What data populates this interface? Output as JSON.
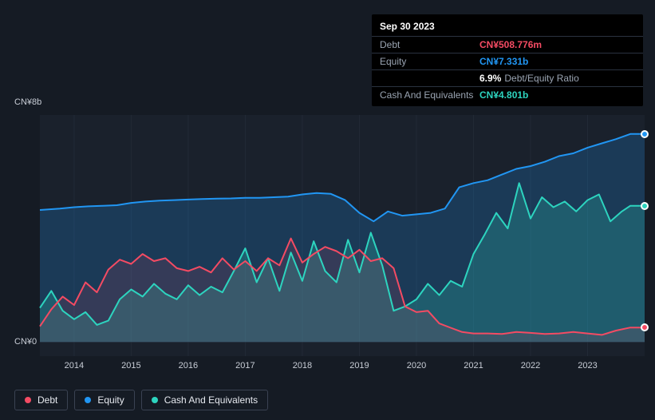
{
  "tooltip": {
    "date": "Sep 30 2023",
    "rows": [
      {
        "label": "Debt",
        "value": "CN¥508.776m",
        "color": "#f44b63"
      },
      {
        "label": "Equity",
        "value": "CN¥7.331b",
        "color": "#2196f3"
      },
      {
        "label": "",
        "value": "6.9%",
        "suffix": "Debt/Equity Ratio",
        "color": "#ffffff"
      },
      {
        "label": "Cash And Equivalents",
        "value": "CN¥4.801b",
        "color": "#2dd4bf"
      }
    ]
  },
  "chart": {
    "type": "area",
    "background": "#1a212c",
    "page_background": "#151b24",
    "grid_color": "#222a36",
    "y_axis": {
      "ticks": [
        {
          "value": 8,
          "label": "CN¥8b"
        },
        {
          "value": 0,
          "label": "CN¥0"
        }
      ],
      "min": -0.5,
      "max": 8,
      "label_color": "#c8cdd6",
      "fontsize": 11
    },
    "x_axis": {
      "labels": [
        "2014",
        "2015",
        "2016",
        "2017",
        "2018",
        "2019",
        "2020",
        "2021",
        "2022",
        "2023"
      ],
      "min": 2013.4,
      "max": 2024.0,
      "label_color": "#c8cdd6",
      "fontsize": 11
    },
    "series": [
      {
        "name": "Equity",
        "color": "#2196f3",
        "fill_opacity": 0.22,
        "line_width": 2,
        "data": [
          [
            2013.4,
            4.65
          ],
          [
            2013.75,
            4.7
          ],
          [
            2014.0,
            4.75
          ],
          [
            2014.25,
            4.78
          ],
          [
            2014.5,
            4.8
          ],
          [
            2014.75,
            4.82
          ],
          [
            2015.0,
            4.9
          ],
          [
            2015.25,
            4.95
          ],
          [
            2015.5,
            4.98
          ],
          [
            2015.75,
            5.0
          ],
          [
            2016.0,
            5.02
          ],
          [
            2016.25,
            5.04
          ],
          [
            2016.5,
            5.05
          ],
          [
            2016.75,
            5.06
          ],
          [
            2017.0,
            5.08
          ],
          [
            2017.25,
            5.08
          ],
          [
            2017.5,
            5.1
          ],
          [
            2017.75,
            5.12
          ],
          [
            2018.0,
            5.2
          ],
          [
            2018.25,
            5.25
          ],
          [
            2018.5,
            5.22
          ],
          [
            2018.75,
            5.0
          ],
          [
            2019.0,
            4.55
          ],
          [
            2019.25,
            4.25
          ],
          [
            2019.5,
            4.6
          ],
          [
            2019.75,
            4.45
          ],
          [
            2020.0,
            4.5
          ],
          [
            2020.25,
            4.55
          ],
          [
            2020.5,
            4.7
          ],
          [
            2020.75,
            5.45
          ],
          [
            2021.0,
            5.6
          ],
          [
            2021.25,
            5.7
          ],
          [
            2021.5,
            5.9
          ],
          [
            2021.75,
            6.1
          ],
          [
            2022.0,
            6.2
          ],
          [
            2022.25,
            6.35
          ],
          [
            2022.5,
            6.55
          ],
          [
            2022.75,
            6.65
          ],
          [
            2023.0,
            6.85
          ],
          [
            2023.25,
            7.0
          ],
          [
            2023.5,
            7.15
          ],
          [
            2023.75,
            7.33
          ],
          [
            2024.0,
            7.33
          ]
        ]
      },
      {
        "name": "Cash And Equivalents",
        "color": "#2dd4bf",
        "fill_opacity": 0.22,
        "line_width": 2,
        "data": [
          [
            2013.4,
            1.2
          ],
          [
            2013.6,
            1.8
          ],
          [
            2013.8,
            1.1
          ],
          [
            2014.0,
            0.8
          ],
          [
            2014.2,
            1.05
          ],
          [
            2014.4,
            0.6
          ],
          [
            2014.6,
            0.75
          ],
          [
            2014.8,
            1.5
          ],
          [
            2015.0,
            1.85
          ],
          [
            2015.2,
            1.6
          ],
          [
            2015.4,
            2.05
          ],
          [
            2015.6,
            1.7
          ],
          [
            2015.8,
            1.5
          ],
          [
            2016.0,
            2.0
          ],
          [
            2016.2,
            1.65
          ],
          [
            2016.4,
            1.95
          ],
          [
            2016.6,
            1.75
          ],
          [
            2016.8,
            2.5
          ],
          [
            2017.0,
            3.3
          ],
          [
            2017.2,
            2.1
          ],
          [
            2017.4,
            2.95
          ],
          [
            2017.6,
            1.8
          ],
          [
            2017.8,
            3.15
          ],
          [
            2018.0,
            2.15
          ],
          [
            2018.2,
            3.55
          ],
          [
            2018.4,
            2.5
          ],
          [
            2018.6,
            2.1
          ],
          [
            2018.8,
            3.6
          ],
          [
            2019.0,
            2.45
          ],
          [
            2019.2,
            3.85
          ],
          [
            2019.4,
            2.7
          ],
          [
            2019.6,
            1.1
          ],
          [
            2019.8,
            1.25
          ],
          [
            2020.0,
            1.5
          ],
          [
            2020.2,
            2.05
          ],
          [
            2020.4,
            1.65
          ],
          [
            2020.6,
            2.15
          ],
          [
            2020.8,
            1.95
          ],
          [
            2021.0,
            3.1
          ],
          [
            2021.2,
            3.8
          ],
          [
            2021.4,
            4.55
          ],
          [
            2021.6,
            4.0
          ],
          [
            2021.8,
            5.6
          ],
          [
            2022.0,
            4.35
          ],
          [
            2022.2,
            5.1
          ],
          [
            2022.4,
            4.75
          ],
          [
            2022.6,
            4.95
          ],
          [
            2022.8,
            4.6
          ],
          [
            2023.0,
            5.0
          ],
          [
            2023.2,
            5.2
          ],
          [
            2023.4,
            4.25
          ],
          [
            2023.6,
            4.6
          ],
          [
            2023.75,
            4.8
          ],
          [
            2024.0,
            4.8
          ]
        ]
      },
      {
        "name": "Debt",
        "color": "#f44b63",
        "fill_opacity": 0.12,
        "line_width": 2,
        "data": [
          [
            2013.4,
            0.55
          ],
          [
            2013.6,
            1.15
          ],
          [
            2013.8,
            1.6
          ],
          [
            2014.0,
            1.3
          ],
          [
            2014.2,
            2.1
          ],
          [
            2014.4,
            1.75
          ],
          [
            2014.6,
            2.55
          ],
          [
            2014.8,
            2.9
          ],
          [
            2015.0,
            2.75
          ],
          [
            2015.2,
            3.1
          ],
          [
            2015.4,
            2.85
          ],
          [
            2015.6,
            2.95
          ],
          [
            2015.8,
            2.6
          ],
          [
            2016.0,
            2.5
          ],
          [
            2016.2,
            2.65
          ],
          [
            2016.4,
            2.45
          ],
          [
            2016.6,
            2.95
          ],
          [
            2016.8,
            2.55
          ],
          [
            2017.0,
            2.85
          ],
          [
            2017.2,
            2.5
          ],
          [
            2017.4,
            2.95
          ],
          [
            2017.6,
            2.7
          ],
          [
            2017.8,
            3.65
          ],
          [
            2018.0,
            2.8
          ],
          [
            2018.2,
            3.1
          ],
          [
            2018.4,
            3.35
          ],
          [
            2018.6,
            3.2
          ],
          [
            2018.8,
            2.95
          ],
          [
            2019.0,
            3.25
          ],
          [
            2019.2,
            2.85
          ],
          [
            2019.4,
            2.95
          ],
          [
            2019.6,
            2.6
          ],
          [
            2019.8,
            1.25
          ],
          [
            2020.0,
            1.05
          ],
          [
            2020.2,
            1.1
          ],
          [
            2020.4,
            0.65
          ],
          [
            2020.6,
            0.5
          ],
          [
            2020.8,
            0.35
          ],
          [
            2021.0,
            0.3
          ],
          [
            2021.25,
            0.3
          ],
          [
            2021.5,
            0.28
          ],
          [
            2021.75,
            0.35
          ],
          [
            2022.0,
            0.32
          ],
          [
            2022.25,
            0.28
          ],
          [
            2022.5,
            0.3
          ],
          [
            2022.75,
            0.35
          ],
          [
            2023.0,
            0.3
          ],
          [
            2023.25,
            0.25
          ],
          [
            2023.5,
            0.4
          ],
          [
            2023.75,
            0.508
          ],
          [
            2024.0,
            0.508
          ]
        ]
      }
    ],
    "markers": [
      {
        "x": 2024.0,
        "y": 7.33,
        "color": "#2196f3"
      },
      {
        "x": 2024.0,
        "y": 4.8,
        "color": "#2dd4bf"
      },
      {
        "x": 2024.0,
        "y": 0.508,
        "color": "#f44b63"
      }
    ]
  },
  "legend": {
    "items": [
      {
        "label": "Debt",
        "color": "#f44b63"
      },
      {
        "label": "Equity",
        "color": "#2196f3"
      },
      {
        "label": "Cash And Equivalents",
        "color": "#2dd4bf"
      }
    ],
    "border_color": "#3a4252",
    "text_color": "#e6e9ef",
    "fontsize": 12
  }
}
